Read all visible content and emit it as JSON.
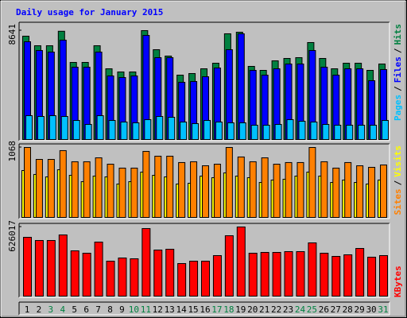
{
  "title": "Daily usage for January 2015",
  "legend_separator": "/",
  "categories": [
    "1",
    "2",
    "3",
    "4",
    "5",
    "6",
    "7",
    "8",
    "9",
    "10",
    "11",
    "12",
    "13",
    "14",
    "15",
    "16",
    "17",
    "18",
    "19",
    "20",
    "21",
    "22",
    "23",
    "24",
    "25",
    "26",
    "27",
    "28",
    "29",
    "30",
    "31"
  ],
  "highlight_categories": [
    "3",
    "4",
    "10",
    "11",
    "17",
    "18",
    "24",
    "25",
    "31"
  ],
  "highlight_color": "#008040",
  "chart_data": [
    {
      "type": "bar",
      "ylim": [
        0,
        8641
      ],
      "yticks": [
        8641
      ],
      "series": [
        {
          "name": "Hits",
          "color": "#008040",
          "values": [
            8199,
            7442,
            7442,
            8590,
            6118,
            6118,
            7442,
            5613,
            5361,
            5361,
            8641,
            7127,
            6622,
            5109,
            5235,
            5613,
            6055,
            8389,
            8515,
            5803,
            5487,
            6244,
            6433,
            6496,
            7695,
            6433,
            5613,
            6055,
            6055,
            5487,
            5992
          ]
        },
        {
          "name": "Files",
          "color": "#0000FF",
          "values": [
            7758,
            7064,
            6938,
            7884,
            5739,
            5739,
            6938,
            5046,
            4919,
            5046,
            8262,
            6496,
            6496,
            4541,
            4604,
            4983,
            5676,
            7127,
            8388,
            5487,
            5109,
            5613,
            5992,
            5992,
            7064,
            5739,
            5109,
            5613,
            5613,
            4667,
            5550
          ]
        },
        {
          "name": "Pages",
          "color": "#00C0FF",
          "values": [
            1892,
            1829,
            1892,
            1829,
            1514,
            1198,
            1892,
            1514,
            1388,
            1324,
            1577,
            1829,
            1766,
            1388,
            1261,
            1514,
            1388,
            1324,
            1324,
            1135,
            1135,
            1198,
            1577,
            1451,
            1388,
            1198,
            1135,
            1135,
            1135,
            1135,
            1514
          ]
        }
      ]
    },
    {
      "type": "bar",
      "ylim": [
        0,
        1068
      ],
      "yticks": [
        1068
      ],
      "series": [
        {
          "name": "Visits",
          "color": "#FFFF00",
          "values": [
            716,
            656,
            619,
            728,
            643,
            546,
            631,
            619,
            510,
            546,
            692,
            643,
            619,
            510,
            522,
            631,
            607,
            680,
            631,
            607,
            534,
            571,
            583,
            631,
            692,
            631,
            534,
            571,
            534,
            510,
            571
          ]
        },
        {
          "name": "Sites",
          "color": "#FF8000",
          "values": [
            1068,
            886,
            886,
            1020,
            850,
            850,
            910,
            813,
            753,
            753,
            1008,
            935,
            935,
            838,
            850,
            789,
            813,
            1068,
            923,
            850,
            910,
            813,
            838,
            838,
            1068,
            850,
            753,
            838,
            789,
            765,
            801
          ]
        }
      ]
    },
    {
      "type": "bar",
      "ylim": [
        0,
        626017
      ],
      "yticks": [
        626017
      ],
      "series": [
        {
          "name": "KBytes",
          "color": "#FF0000",
          "values": [
            532504,
            503720,
            503720,
            554092,
            410172,
            388584,
            489328,
            316624,
            345408,
            338212,
            611660,
            417368,
            424564,
            295036,
            316624,
            316624,
            366996,
            546896,
            626017,
            388584,
            395780,
            395780,
            402976,
            402976,
            482132,
            388584,
            359800,
            374192,
            431760,
            352604,
            366996
          ]
        }
      ]
    }
  ]
}
